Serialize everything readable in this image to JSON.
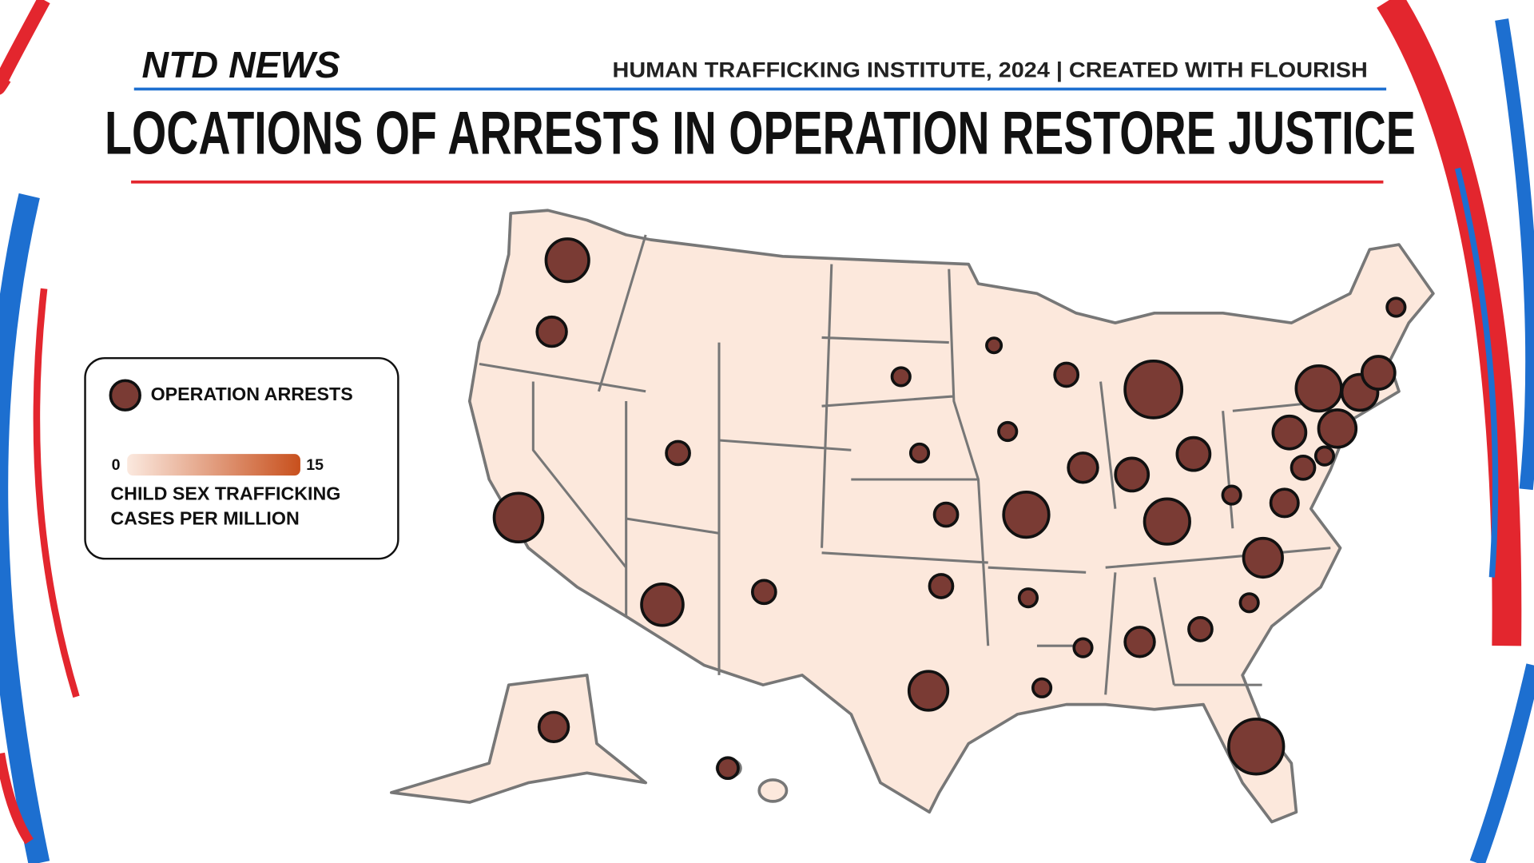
{
  "header": {
    "brand": "NTD NEWS",
    "source": "HUMAN TRAFFICKING INSTITUTE, 2024 | CREATED WITH FLOURISH",
    "title": "LOCATIONS OF ARRESTS IN OPERATION RESTORE JUSTICE"
  },
  "legend": {
    "size_label": "OPERATION ARRESTS",
    "color_ticks": [
      0,
      15
    ],
    "color_label": [
      "CHILD SEX TRAFFICKING",
      "CASES PER MILLION"
    ]
  },
  "map": {
    "bubble_color": "#7a3b34",
    "land_color": "#fce8dc",
    "arrests": [
      17,
      8,
      22,
      16,
      5,
      5,
      8,
      4,
      14,
      5,
      5,
      3,
      3,
      2,
      5,
      3,
      19,
      3,
      3,
      8,
      30,
      10,
      10,
      19,
      3,
      7,
      14,
      3,
      5,
      8,
      3,
      28,
      10,
      19,
      13,
      12,
      3,
      10,
      5,
      3
    ]
  }
}
